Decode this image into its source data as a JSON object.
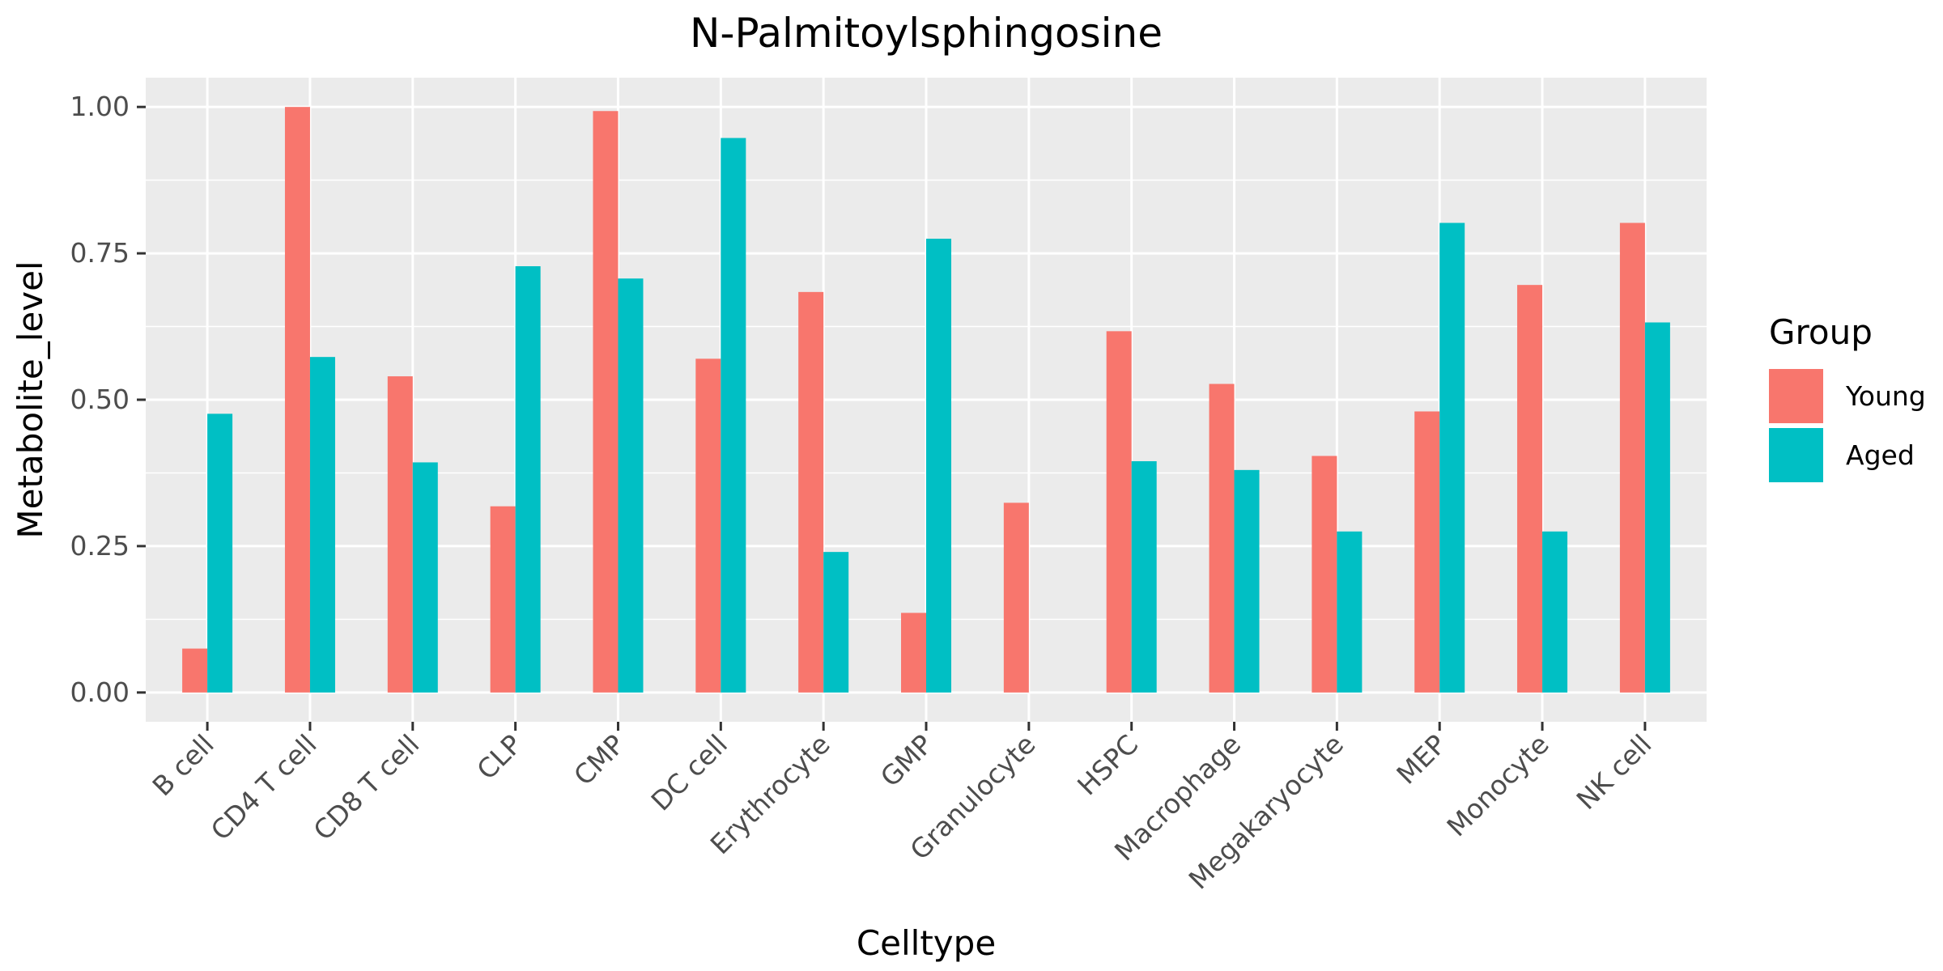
{
  "chart_data": {
    "type": "bar",
    "title": "N-Palmitoylsphingosine",
    "xlabel": "Celltype",
    "ylabel": "Metabolite_level",
    "categories": [
      "B cell",
      "CD4 T cell",
      "CD8 T cell",
      "CLP",
      "CMP",
      "DC cell",
      "Erythrocyte",
      "GMP",
      "Granulocyte",
      "HSPC",
      "Macrophage",
      "Megakaryocyte",
      "MEP",
      "Monocyte",
      "NK cell"
    ],
    "series": [
      {
        "name": "Young",
        "color": "#F8766D",
        "values": [
          0.075,
          1.0,
          0.54,
          0.318,
          0.993,
          0.57,
          0.684,
          0.136,
          0.324,
          0.617,
          0.527,
          0.404,
          0.48,
          0.696,
          0.802
        ]
      },
      {
        "name": "Aged",
        "color": "#00BFC4",
        "values": [
          0.476,
          0.573,
          0.393,
          0.728,
          0.707,
          0.947,
          0.24,
          0.775,
          0.0,
          0.395,
          0.38,
          0.275,
          0.802,
          0.275,
          0.632
        ]
      }
    ],
    "ylim": [
      -0.05,
      1.05
    ],
    "yticks": [
      0.0,
      0.25,
      0.5,
      0.75,
      1.0
    ],
    "ytick_labels": [
      "0.00",
      "0.25",
      "0.50",
      "0.75",
      "1.00"
    ],
    "grid": true,
    "legend": {
      "title": "Group",
      "position": "right"
    },
    "panel_background": "#EBEBEB"
  }
}
